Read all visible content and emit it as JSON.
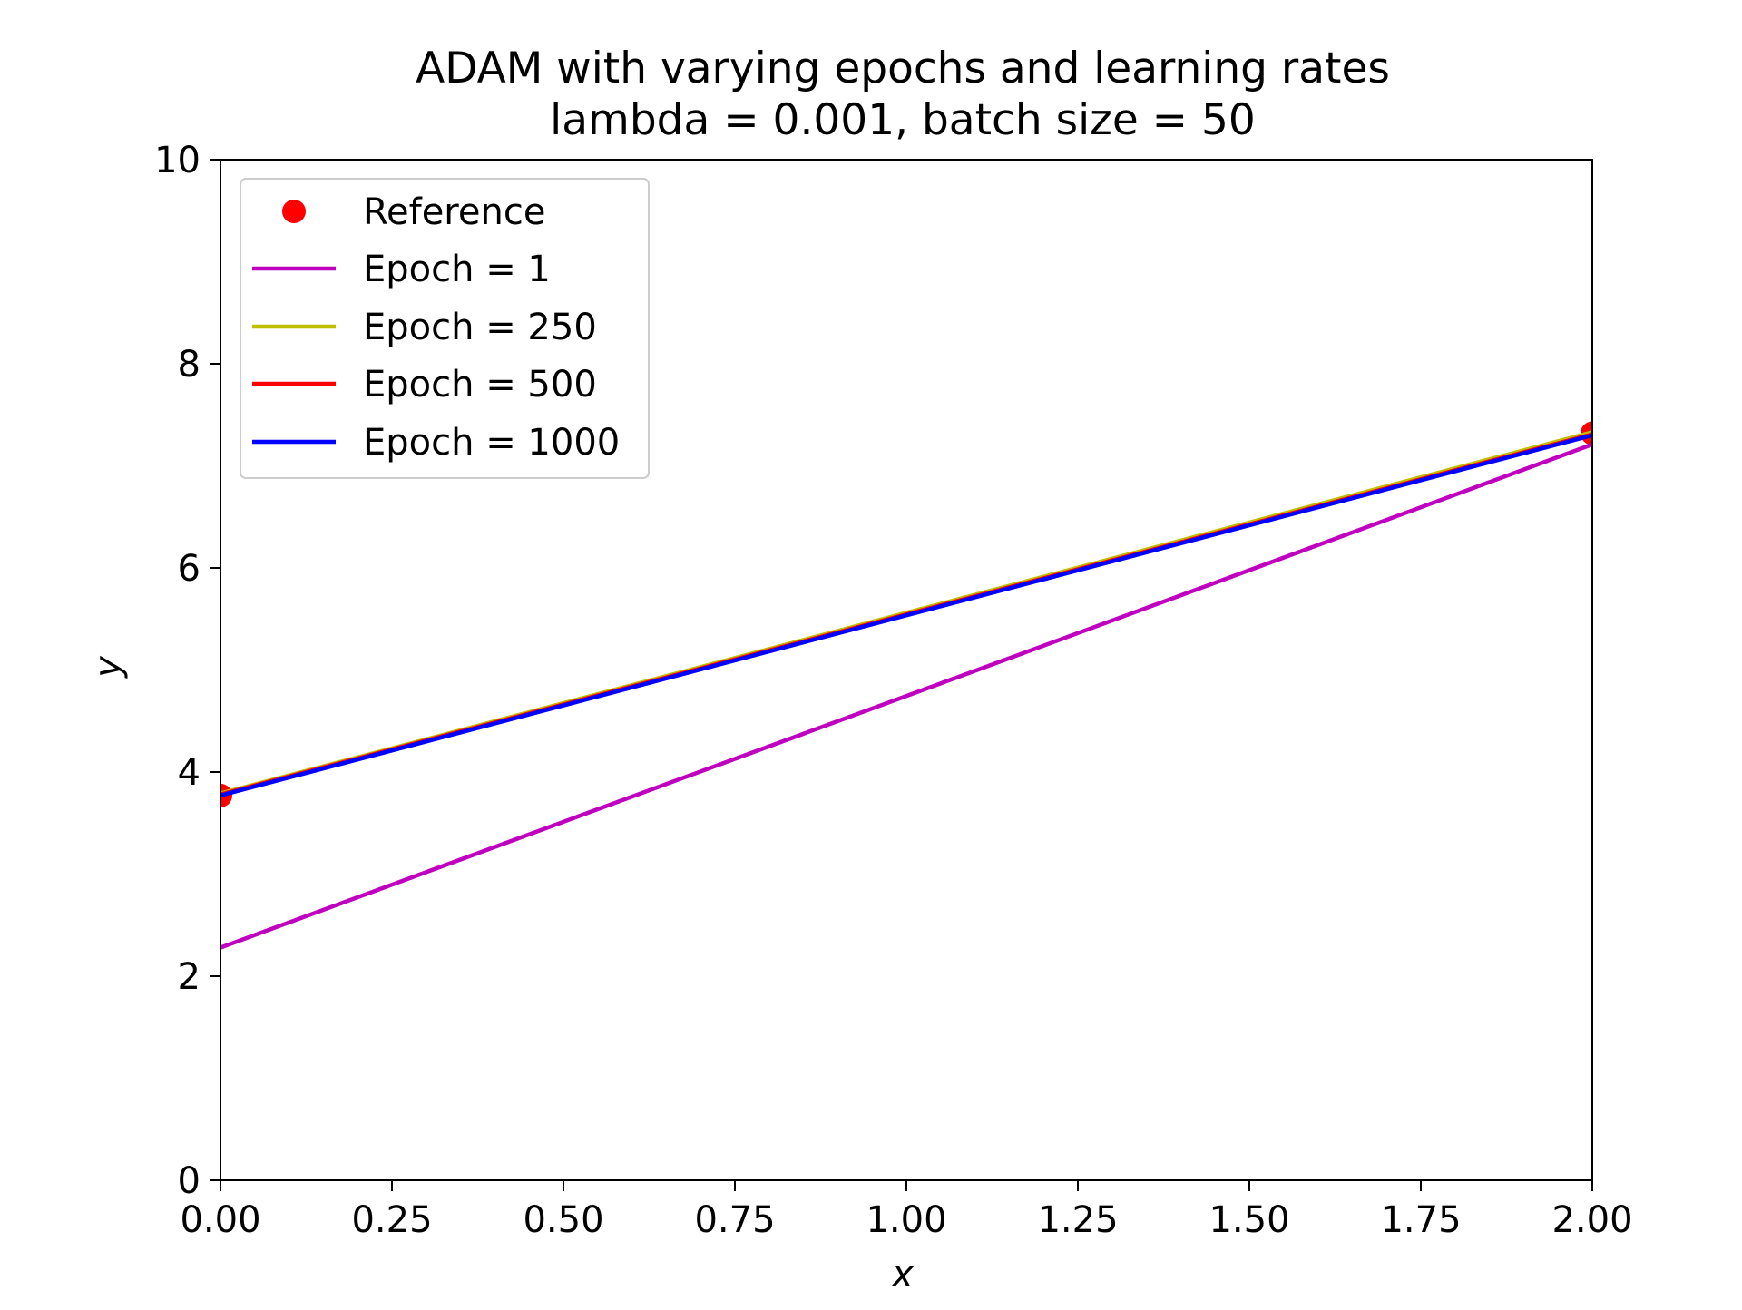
{
  "chart_data": {
    "type": "line",
    "title": "ADAM with varying epochs and learning rates",
    "subtitle": "lambda = 0.001, batch size = 50",
    "xlabel": "x",
    "ylabel": "y",
    "xlim": [
      0,
      2
    ],
    "ylim": [
      0,
      10
    ],
    "x_ticks": [
      "0.00",
      "0.25",
      "0.50",
      "0.75",
      "1.00",
      "1.25",
      "1.50",
      "1.75",
      "2.00"
    ],
    "y_ticks": [
      "0",
      "2",
      "4",
      "6",
      "8",
      "10"
    ],
    "grid": false,
    "legend_position": "top-left",
    "reference": {
      "name": "Reference",
      "color": "#ff0000",
      "x": [
        0,
        2
      ],
      "y": [
        3.77,
        7.32
      ]
    },
    "series": [
      {
        "name": "Epoch = 1",
        "color": "#bf00bf",
        "x": [
          0,
          2
        ],
        "y": [
          2.28,
          7.21
        ]
      },
      {
        "name": "Epoch = 250",
        "color": "#bfbf00",
        "x": [
          0,
          2
        ],
        "y": [
          3.79,
          7.33
        ]
      },
      {
        "name": "Epoch = 500",
        "color": "#ff0000",
        "x": [
          0,
          2
        ],
        "y": [
          3.78,
          7.31
        ]
      },
      {
        "name": "Epoch = 1000",
        "color": "#0000ff",
        "x": [
          0,
          2
        ],
        "y": [
          3.77,
          7.3
        ]
      }
    ]
  }
}
